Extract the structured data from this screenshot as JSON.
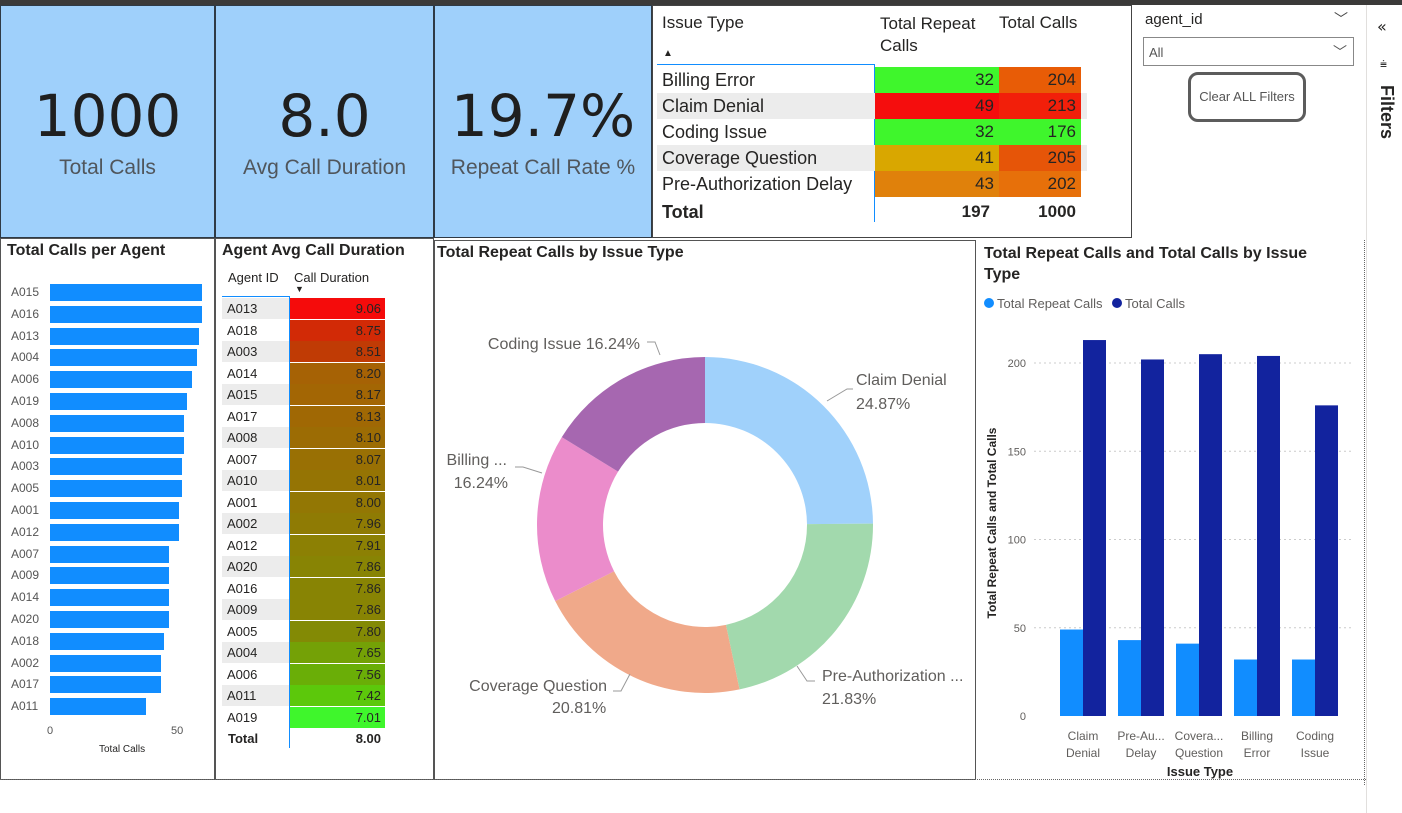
{
  "kpis": [
    {
      "value": "1000",
      "label": "Total Calls"
    },
    {
      "value": "8.0",
      "label": "Avg Call Duration"
    },
    {
      "value": "19.7%",
      "label": "Repeat Call Rate %"
    }
  ],
  "matrix": {
    "headers": {
      "issue_type": "Issue Type",
      "repeat": "Total Repeat Calls",
      "total": "Total Calls"
    },
    "rows": [
      {
        "issue": "Billing Error",
        "repeat": "32",
        "total": "204",
        "repeat_color": "#3ff62c",
        "total_color": "#e85c06"
      },
      {
        "issue": "Claim Denial",
        "repeat": "49",
        "total": "213",
        "repeat_color": "#f50d0d",
        "total_color": "#f21f0a"
      },
      {
        "issue": "Coding Issue",
        "repeat": "32",
        "total": "176",
        "repeat_color": "#3ff62c",
        "total_color": "#3ff62c"
      },
      {
        "issue": "Coverage Question",
        "repeat": "41",
        "total": "205",
        "repeat_color": "#d9a700",
        "total_color": "#e65508"
      },
      {
        "issue": "Pre-Authorization Delay",
        "repeat": "43",
        "total": "202",
        "repeat_color": "#e0810b",
        "total_color": "#e7700a"
      }
    ],
    "total_label": "Total",
    "total_repeat": "197",
    "total_calls": "1000"
  },
  "slicer": {
    "title": "agent_id",
    "selected": "All",
    "clear_label": "Clear ALL Filters"
  },
  "filters_pane": {
    "label": "Filters"
  },
  "agent_calls": {
    "title": "Total Calls per Agent",
    "xlabel": "Total Calls",
    "ticks": [
      "0",
      "50"
    ],
    "rows": [
      {
        "agent": "A015",
        "value": 60
      },
      {
        "agent": "A016",
        "value": 60
      },
      {
        "agent": "A013",
        "value": 59
      },
      {
        "agent": "A004",
        "value": 58
      },
      {
        "agent": "A006",
        "value": 56
      },
      {
        "agent": "A019",
        "value": 54
      },
      {
        "agent": "A008",
        "value": 53
      },
      {
        "agent": "A010",
        "value": 53
      },
      {
        "agent": "A003",
        "value": 52
      },
      {
        "agent": "A005",
        "value": 52
      },
      {
        "agent": "A001",
        "value": 51
      },
      {
        "agent": "A012",
        "value": 51
      },
      {
        "agent": "A007",
        "value": 47
      },
      {
        "agent": "A009",
        "value": 47
      },
      {
        "agent": "A014",
        "value": 47
      },
      {
        "agent": "A020",
        "value": 47
      },
      {
        "agent": "A018",
        "value": 45
      },
      {
        "agent": "A002",
        "value": 44
      },
      {
        "agent": "A017",
        "value": 44
      },
      {
        "agent": "A011",
        "value": 38
      }
    ]
  },
  "agent_duration": {
    "title": "Agent Avg Call Duration",
    "col_agent": "Agent ID",
    "col_duration": "Call Duration",
    "rows": [
      {
        "agent": "A013",
        "dur": "9.06",
        "color": "#f50b0b"
      },
      {
        "agent": "A018",
        "dur": "8.75",
        "color": "#d22a06"
      },
      {
        "agent": "A003",
        "dur": "8.51",
        "color": "#c03b05"
      },
      {
        "agent": "A014",
        "dur": "8.20",
        "color": "#a66205"
      },
      {
        "agent": "A015",
        "dur": "8.17",
        "color": "#a36604"
      },
      {
        "agent": "A017",
        "dur": "8.13",
        "color": "#a06804"
      },
      {
        "agent": "A008",
        "dur": "8.10",
        "color": "#9c6c04"
      },
      {
        "agent": "A007",
        "dur": "8.07",
        "color": "#997004"
      },
      {
        "agent": "A010",
        "dur": "8.01",
        "color": "#957404"
      },
      {
        "agent": "A001",
        "dur": "8.00",
        "color": "#937704"
      },
      {
        "agent": "A002",
        "dur": "7.96",
        "color": "#8f7b04"
      },
      {
        "agent": "A012",
        "dur": "7.91",
        "color": "#8c8004"
      },
      {
        "agent": "A020",
        "dur": "7.86",
        "color": "#888404"
      },
      {
        "agent": "A016",
        "dur": "7.86",
        "color": "#888404"
      },
      {
        "agent": "A009",
        "dur": "7.86",
        "color": "#888404"
      },
      {
        "agent": "A005",
        "dur": "7.80",
        "color": "#838a05"
      },
      {
        "agent": "A004",
        "dur": "7.65",
        "color": "#74a106"
      },
      {
        "agent": "A006",
        "dur": "7.56",
        "color": "#6aae07"
      },
      {
        "agent": "A011",
        "dur": "7.42",
        "color": "#5cc80b"
      },
      {
        "agent": "A019",
        "dur": "7.01",
        "color": "#3ff62c"
      }
    ],
    "total_label": "Total",
    "total_value": "8.00"
  },
  "donut": {
    "title": "Total Repeat Calls by Issue Type",
    "slices": [
      {
        "name": "Claim Denial",
        "pct": 24.87,
        "label": "Claim Denial",
        "pct_label": "24.87%",
        "color": "#a0d1fb"
      },
      {
        "name": "Pre-Authorization Delay",
        "pct": 21.83,
        "label": "Pre-Authorization ...",
        "pct_label": "21.83%",
        "color": "#a2d9ad"
      },
      {
        "name": "Coverage Question",
        "pct": 20.81,
        "label": "Coverage Question",
        "pct_label": "20.81%",
        "color": "#f0a98a"
      },
      {
        "name": "Billing Error",
        "pct": 16.24,
        "label": "Billing ...",
        "pct_label": "16.24%",
        "color": "#eb8ccb"
      },
      {
        "name": "Coding Issue",
        "pct": 16.24,
        "label": "Coding Issue 16.24%",
        "pct_label": "",
        "color": "#a667b0"
      }
    ]
  },
  "chart_data": {
    "type": "bar",
    "title": "Total Repeat Calls and Total Calls by Issue Type",
    "xlabel": "Issue Type",
    "ylabel": "Total Repeat Calls and Total Calls",
    "categories": [
      "Claim Denial",
      "Pre-Authorization Delay",
      "Coverage Question",
      "Billing Error",
      "Coding Issue"
    ],
    "category_labels": [
      [
        "Claim",
        "Denial"
      ],
      [
        "Pre-Au...",
        "Delay"
      ],
      [
        "Covera...",
        "Question"
      ],
      [
        "Billing",
        "Error"
      ],
      [
        "Coding",
        "Issue"
      ]
    ],
    "series": [
      {
        "name": "Total Repeat Calls",
        "values": [
          49,
          43,
          41,
          32,
          32
        ],
        "color": "#118dff"
      },
      {
        "name": "Total Calls",
        "values": [
          213,
          202,
          205,
          204,
          176
        ],
        "color": "#12239e"
      }
    ],
    "ylim": [
      0,
      200
    ],
    "yticks": [
      0,
      50,
      100,
      150,
      200
    ],
    "legend": "top-left",
    "grid": true
  }
}
